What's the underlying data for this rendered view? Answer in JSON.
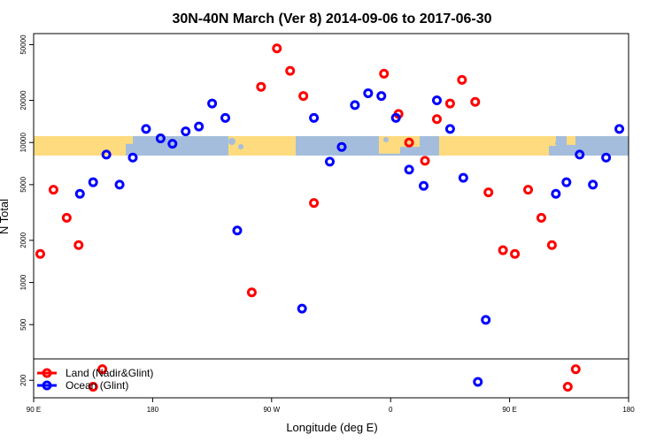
{
  "chart_data": {
    "type": "scatter",
    "title": "30N-40N March (Ver 8)   2014-09-06 to 2017-06-30",
    "xlabel": "Longitude (deg E)",
    "ylabel": "N Total",
    "x_ticks": [
      {
        "value": 90,
        "label": "90 E"
      },
      {
        "value": 180,
        "label": "180"
      },
      {
        "value": 270,
        "label": "90 W"
      },
      {
        "value": 360,
        "label": "0"
      },
      {
        "value": 450,
        "label": "90 E"
      },
      {
        "value": 540,
        "label": "180"
      }
    ],
    "xlim": [
      90,
      540
    ],
    "y_scale": "log",
    "y_ticks": [
      200,
      500,
      1000,
      2000,
      5000,
      10000,
      20000,
      50000
    ],
    "ylim": [
      150,
      60000
    ],
    "colors": {
      "land": "#ff0000",
      "ocean": "#0000ff",
      "map_ocean": "#a5bddc",
      "map_land": "#fddb7e"
    },
    "legend": {
      "position": "bottom-left",
      "items": [
        {
          "name": "Land (Nadir&Glint)",
          "color": "#ff0000"
        },
        {
          "name": "Ocean (Glint)",
          "color": "#0000ff"
        }
      ]
    },
    "series": [
      {
        "name": "Land (Nadir&Glint)",
        "color": "#ff0000",
        "points": [
          {
            "x": 95,
            "y": 1600
          },
          {
            "x": 105,
            "y": 4600
          },
          {
            "x": 115,
            "y": 2900
          },
          {
            "x": 124,
            "y": 1850
          },
          {
            "x": 135,
            "y": 180
          },
          {
            "x": 142,
            "y": 240
          },
          {
            "x": 255,
            "y": 850
          },
          {
            "x": 262,
            "y": 25000
          },
          {
            "x": 274,
            "y": 47000
          },
          {
            "x": 284,
            "y": 32500
          },
          {
            "x": 294,
            "y": 21500
          },
          {
            "x": 302,
            "y": 3700
          },
          {
            "x": 355,
            "y": 31000
          },
          {
            "x": 366,
            "y": 16000
          },
          {
            "x": 374,
            "y": 10000
          },
          {
            "x": 386,
            "y": 7400
          },
          {
            "x": 395,
            "y": 14700
          },
          {
            "x": 405,
            "y": 19000
          },
          {
            "x": 414,
            "y": 28000
          },
          {
            "x": 424,
            "y": 19500
          },
          {
            "x": 434,
            "y": 4400
          },
          {
            "x": 445,
            "y": 1700
          },
          {
            "x": 454,
            "y": 1600
          },
          {
            "x": 464,
            "y": 4600
          },
          {
            "x": 474,
            "y": 2900
          },
          {
            "x": 482,
            "y": 1850
          },
          {
            "x": 494,
            "y": 180
          },
          {
            "x": 500,
            "y": 240
          }
        ]
      },
      {
        "name": "Ocean (Glint)",
        "color": "#0000ff",
        "points": [
          {
            "x": 125,
            "y": 4300
          },
          {
            "x": 135,
            "y": 5200
          },
          {
            "x": 145,
            "y": 8200
          },
          {
            "x": 155,
            "y": 5000
          },
          {
            "x": 165,
            "y": 7800
          },
          {
            "x": 175,
            "y": 12500
          },
          {
            "x": 186,
            "y": 10700
          },
          {
            "x": 195,
            "y": 9800
          },
          {
            "x": 205,
            "y": 12000
          },
          {
            "x": 215,
            "y": 13000
          },
          {
            "x": 225,
            "y": 19000
          },
          {
            "x": 235,
            "y": 15000
          },
          {
            "x": 244,
            "y": 2350
          },
          {
            "x": 293,
            "y": 650
          },
          {
            "x": 302,
            "y": 15000
          },
          {
            "x": 314,
            "y": 7300
          },
          {
            "x": 323,
            "y": 9300
          },
          {
            "x": 333,
            "y": 18500
          },
          {
            "x": 343,
            "y": 22500
          },
          {
            "x": 353,
            "y": 21500
          },
          {
            "x": 364,
            "y": 15000
          },
          {
            "x": 374,
            "y": 6400
          },
          {
            "x": 385,
            "y": 4900
          },
          {
            "x": 395,
            "y": 20000
          },
          {
            "x": 405,
            "y": 12500
          },
          {
            "x": 415,
            "y": 5600
          },
          {
            "x": 426,
            "y": 195
          },
          {
            "x": 432,
            "y": 540
          },
          {
            "x": 485,
            "y": 4300
          },
          {
            "x": 493,
            "y": 5200
          },
          {
            "x": 503,
            "y": 8200
          },
          {
            "x": 513,
            "y": 5000
          },
          {
            "x": 523,
            "y": 7800
          },
          {
            "x": 533,
            "y": 12500
          }
        ]
      }
    ]
  }
}
